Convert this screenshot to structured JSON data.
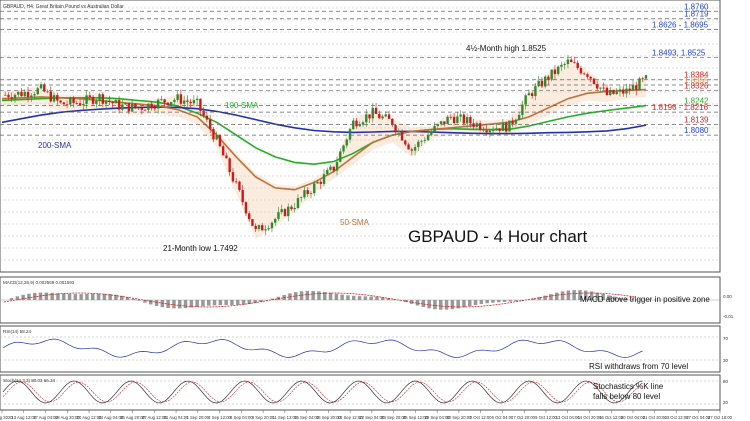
{
  "header": {
    "instrument_text": "GBPAUD, H4: Great Britain Pound vs Australian Dollar"
  },
  "chart_title": "GBPAUD - 4 Hour chart",
  "colors": {
    "price_up": "#2e8b2e",
    "price_down": "#d01818",
    "sma50": "#c0703a",
    "sma100": "#22b022",
    "sma200": "#2233aa",
    "tenkan": "#d02020",
    "kijun": "#3355cc",
    "chikou": "#66dd22",
    "level_blue": "#2244cc",
    "level_red": "#dd2222",
    "level_orange": "#e09050",
    "level_green": "#30b030"
  },
  "annotations": {
    "high": "4½-Month high 1.8525",
    "low": "21-Month low 1.7492",
    "sma100": "100-SMA",
    "sma200": "200-SMA",
    "sma50": "50-SMA"
  },
  "levels": [
    {
      "text": "1.8760",
      "color": "blue",
      "y": 1.876
    },
    {
      "text": "1.8719",
      "color": "blue",
      "y": 1.8719
    },
    {
      "text": "1.8626 - 1.8695",
      "color": "blue",
      "y": 1.866
    },
    {
      "text": "1.8493, 1.8525",
      "color": "blue",
      "y": 1.8505
    },
    {
      "text": "1.8384",
      "color": "red",
      "y": 1.8384
    },
    {
      "text": "1.8355",
      "color": "orange",
      "y": 1.8355
    },
    {
      "text": "1.8326",
      "color": "red",
      "y": 1.8326
    },
    {
      "text": "1.8242",
      "color": "green",
      "y": 1.8242
    },
    {
      "text": "1.8196 - 1.8216",
      "color": "red",
      "y": 1.8206
    },
    {
      "text": "1.8139",
      "color": "red",
      "y": 1.8139
    },
    {
      "text": "1.8080",
      "color": "blue",
      "y": 1.808
    }
  ],
  "panels": {
    "macd": {
      "header": "MACD(12,26,9) 0.002569 0.001593",
      "note": "MACD above trigger in positive zone",
      "scale": [
        "0.00",
        "-0.01"
      ]
    },
    "rsi": {
      "header": "RSI(14) 58.24",
      "note": "RSI withdraws from 70 level",
      "scale": [
        "70",
        "30"
      ]
    },
    "stoch": {
      "header": "Stoch(14,3,3) 80.03 66.34",
      "note_line1": "Stochastics %K line",
      "note_line2": "falls below 80 level",
      "scale": [
        "80",
        "20"
      ]
    }
  },
  "x_axis_labels": [
    "4 Aug 2020",
    "13 Aug 12:00",
    "17 Aug 04:00",
    "18 Aug 20:00",
    "20 Aug 12:00",
    "24 Aug 04:00",
    "25 Aug 20:00",
    "27 Aug 12:00",
    "31 Aug 04:00",
    "1 Sep 20:00",
    "4 Sep 12:00",
    "8 Sep 04:00",
    "9 Sep 20:00",
    "11 Sep 12:00",
    "15 Sep 04:00",
    "16 Sep 20:00",
    "18 Sep 12:00",
    "22 Sep 04:00",
    "23 Sep 20:00",
    "25 Sep 12:00",
    "29 Sep 04:00",
    "30 Sep 20:00",
    "2 Oct 12:00",
    "6 Oct 04:00",
    "7 Oct 20:00",
    "9 Oct 12:00",
    "13 Oct 04:00",
    "14 Oct 20:00",
    "16 Oct 12:00",
    "20 Oct 04:00",
    "21 Oct 20:00",
    "23 Oct 12:00",
    "27 Oct 04:00",
    "27 Oct 16:00"
  ],
  "chart_data": {
    "type": "line",
    "x": [
      "4 Aug 2020",
      "13 Aug 12:00",
      "17 Aug 04:00",
      "18 Aug 20:00",
      "20 Aug 12:00",
      "24 Aug 04:00",
      "25 Aug 20:00",
      "27 Aug 12:00",
      "31 Aug 04:00",
      "1 Sep 20:00",
      "4 Sep 12:00",
      "8 Sep 04:00",
      "9 Sep 20:00",
      "11 Sep 12:00",
      "15 Sep 04:00",
      "16 Sep 20:00",
      "18 Sep 12:00",
      "22 Sep 04:00",
      "23 Sep 20:00",
      "25 Sep 12:00",
      "29 Sep 04:00",
      "30 Sep 20:00",
      "2 Oct 12:00",
      "6 Oct 04:00",
      "7 Oct 20:00",
      "9 Oct 12:00",
      "13 Oct 04:00",
      "14 Oct 20:00",
      "16 Oct 12:00",
      "20 Oct 04:00",
      "21 Oct 20:00",
      "23 Oct 12:00",
      "27 Oct 04:00",
      "27 Oct 16:00"
    ],
    "ylim": [
      1.735,
      1.88
    ],
    "series": [
      {
        "name": "close",
        "values": [
          1.83,
          1.831,
          1.833,
          1.825,
          1.826,
          1.829,
          1.824,
          1.823,
          1.826,
          1.828,
          1.825,
          1.805,
          1.78,
          1.755,
          1.762,
          1.77,
          1.78,
          1.79,
          1.815,
          1.82,
          1.815,
          1.8,
          1.81,
          1.818,
          1.815,
          1.812,
          1.813,
          1.83,
          1.84,
          1.848,
          1.842,
          1.83,
          1.832,
          1.8384
        ]
      },
      {
        "name": "100-SMA",
        "values": [
          1.827,
          1.8275,
          1.828,
          1.8285,
          1.8285,
          1.8285,
          1.828,
          1.827,
          1.826,
          1.824,
          1.82,
          1.815,
          1.808,
          1.801,
          1.796,
          1.793,
          1.792,
          1.7935,
          1.798,
          1.804,
          1.808,
          1.81,
          1.811,
          1.8115,
          1.8112,
          1.811,
          1.8112,
          1.813,
          1.8155,
          1.818,
          1.82,
          1.8215,
          1.8228,
          1.8242
        ]
      },
      {
        "name": "200-SMA",
        "values": [
          1.815,
          1.817,
          1.819,
          1.8205,
          1.8215,
          1.8222,
          1.8228,
          1.8232,
          1.8234,
          1.8232,
          1.8225,
          1.821,
          1.819,
          1.8165,
          1.814,
          1.812,
          1.8105,
          1.8098,
          1.8095,
          1.8097,
          1.81,
          1.81,
          1.8097,
          1.8093,
          1.809,
          1.8088,
          1.8088,
          1.809,
          1.8093,
          1.8095,
          1.8098,
          1.8103,
          1.8115,
          1.8135
        ]
      },
      {
        "name": "50-SMA",
        "values": [
          1.828,
          1.8285,
          1.829,
          1.8285,
          1.828,
          1.827,
          1.826,
          1.825,
          1.824,
          1.822,
          1.818,
          1.808,
          1.796,
          1.785,
          1.779,
          1.778,
          1.782,
          1.788,
          1.796,
          1.804,
          1.808,
          1.81,
          1.811,
          1.812,
          1.813,
          1.814,
          1.815,
          1.818,
          1.823,
          1.828,
          1.831,
          1.832,
          1.8325,
          1.833
        ]
      }
    ]
  }
}
